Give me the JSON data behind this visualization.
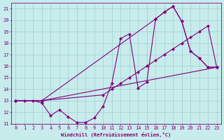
{
  "xlabel": "Windchill (Refroidissement éolien,°C)",
  "bg_color": "#c8ecec",
  "line_color": "#800080",
  "xlim": [
    -0.5,
    23.5
  ],
  "ylim": [
    11,
    21.5
  ],
  "xticks": [
    0,
    1,
    2,
    3,
    4,
    5,
    6,
    7,
    8,
    9,
    10,
    11,
    12,
    13,
    14,
    15,
    16,
    17,
    18,
    19,
    20,
    21,
    22,
    23
  ],
  "yticks": [
    11,
    12,
    13,
    14,
    15,
    16,
    17,
    18,
    19,
    20,
    21
  ],
  "line1_x": [
    0,
    1,
    2,
    3,
    4,
    5,
    6,
    7,
    8,
    9,
    10,
    11,
    12,
    13,
    14,
    15,
    16,
    17,
    18,
    19,
    20,
    21,
    22,
    23
  ],
  "line1_y": [
    13.0,
    13.0,
    13.0,
    12.8,
    11.7,
    12.2,
    11.6,
    11.1,
    11.1,
    11.5,
    12.5,
    14.5,
    18.4,
    18.8,
    14.1,
    14.6,
    20.1,
    20.7,
    21.2,
    19.9,
    17.3,
    16.7,
    15.9,
    15.9
  ],
  "line2_x": [
    0,
    3,
    23
  ],
  "line2_y": [
    13.0,
    13.0,
    15.9
  ],
  "line3_x": [
    0,
    3,
    10,
    11,
    12,
    13,
    14,
    15,
    16,
    17,
    18,
    19,
    20,
    21,
    22,
    23
  ],
  "line3_y": [
    13.0,
    13.0,
    13.5,
    14.0,
    14.5,
    15.0,
    15.5,
    16.0,
    16.5,
    17.0,
    17.5,
    18.0,
    18.5,
    19.0,
    19.5,
    15.9
  ],
  "line4_x": [
    0,
    3,
    16,
    17,
    18,
    19,
    20,
    21,
    22,
    23
  ],
  "line4_y": [
    13.0,
    13.0,
    20.1,
    20.7,
    21.2,
    19.9,
    17.3,
    16.7,
    15.9,
    15.9
  ]
}
